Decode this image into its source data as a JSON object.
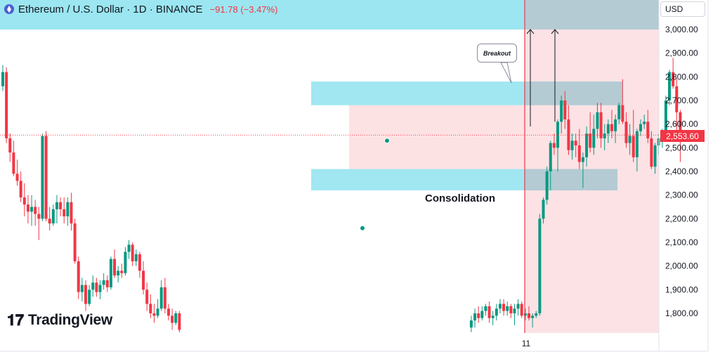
{
  "header": {
    "title": "Ethereum / U.S. Dollar · 1D · BINANCE",
    "change": "−91.78 (−3.47%)",
    "icon": "ethereum-icon"
  },
  "currency_button": "USD",
  "current_price_label": "2,553.60",
  "logo_text": "TradingView",
  "annotations": {
    "callout": "Breakout",
    "range_label": "Consolidation"
  },
  "colors": {
    "up": "#089981",
    "down": "#f23645",
    "zone": "#9be6f0",
    "range_fill": "#fde2e4",
    "target_fill": "#fcdde0",
    "top_band": "#9be6f0",
    "price_line": "#f23645"
  },
  "chart_data": {
    "type": "candlestick",
    "symbol": "ETHUSD",
    "timeframe": "1D",
    "exchange": "BINANCE",
    "y_axis": {
      "ticks": [
        1800,
        1900,
        2000,
        2100,
        2200,
        2300,
        2400,
        2500,
        2600,
        2700,
        2800,
        2900,
        3000
      ],
      "tick_labels": [
        "1,800.00",
        "1,900.00",
        "2,000.00",
        "2,100.00",
        "2,200.00",
        "2,300.00",
        "2,400.00",
        "2,500.00",
        "2,600.00",
        "2,700.00",
        "2,800.00",
        "2,900.00",
        "3,000.00"
      ],
      "range": [
        1720,
        3100
      ]
    },
    "x_axis": {
      "tick_labels": [
        "11"
      ],
      "tick_index": [
        120
      ]
    },
    "candles": [
      [
        2760,
        2850,
        2740,
        2820
      ],
      [
        2820,
        2840,
        2520,
        2540
      ],
      [
        2540,
        2560,
        2440,
        2480
      ],
      [
        2480,
        2530,
        2380,
        2390
      ],
      [
        2390,
        2450,
        2340,
        2360
      ],
      [
        2360,
        2400,
        2270,
        2290
      ],
      [
        2290,
        2350,
        2210,
        2260
      ],
      [
        2260,
        2300,
        2180,
        2230
      ],
      [
        2230,
        2300,
        2170,
        2250
      ],
      [
        2250,
        2280,
        2170,
        2220
      ],
      [
        2220,
        2250,
        2110,
        2200
      ],
      [
        2200,
        2560,
        2190,
        2550
      ],
      [
        2550,
        2570,
        2190,
        2200
      ],
      [
        2200,
        2250,
        2150,
        2180
      ],
      [
        2180,
        2260,
        2170,
        2240
      ],
      [
        2240,
        2300,
        2180,
        2270
      ],
      [
        2270,
        2290,
        2210,
        2240
      ],
      [
        2240,
        2290,
        2180,
        2210
      ],
      [
        2210,
        2290,
        2170,
        2270
      ],
      [
        2270,
        2310,
        2150,
        2180
      ],
      [
        2180,
        2200,
        2010,
        2020
      ],
      [
        2020,
        2040,
        1860,
        1890
      ],
      [
        1890,
        1950,
        1850,
        1920
      ],
      [
        1920,
        1940,
        1810,
        1840
      ],
      [
        1840,
        1920,
        1830,
        1900
      ],
      [
        1900,
        1960,
        1870,
        1930
      ],
      [
        1930,
        1950,
        1870,
        1890
      ],
      [
        1890,
        1940,
        1860,
        1920
      ],
      [
        1920,
        1970,
        1900,
        1940
      ],
      [
        1940,
        1960,
        1890,
        1910
      ],
      [
        1910,
        2040,
        1900,
        2030
      ],
      [
        2030,
        2070,
        1950,
        1960
      ],
      [
        1960,
        2000,
        1930,
        1980
      ],
      [
        1980,
        2010,
        1950,
        1970
      ],
      [
        1970,
        2080,
        1960,
        2060
      ],
      [
        2060,
        2110,
        2030,
        2090
      ],
      [
        2090,
        2100,
        2000,
        2020
      ],
      [
        2020,
        2070,
        2000,
        2050
      ],
      [
        2050,
        2060,
        1950,
        1980
      ],
      [
        1980,
        2020,
        1880,
        1900
      ],
      [
        1900,
        1930,
        1810,
        1840
      ],
      [
        1840,
        1880,
        1780,
        1800
      ],
      [
        1800,
        1840,
        1760,
        1790
      ],
      [
        1790,
        1860,
        1780,
        1820
      ],
      [
        1820,
        1940,
        1810,
        1910
      ],
      [
        1910,
        1950,
        1800,
        1820
      ],
      [
        1820,
        1840,
        1770,
        1790
      ],
      [
        1790,
        1820,
        1730,
        1760
      ],
      [
        1760,
        1810,
        1750,
        1800
      ],
      [
        1800,
        1810,
        1720,
        1730
      ],
      null,
      null,
      null,
      null,
      null,
      null,
      null,
      null,
      null,
      null,
      null,
      null,
      null,
      null,
      null,
      null,
      null,
      null,
      null,
      null,
      null,
      null,
      null,
      null,
      null,
      null,
      null,
      null,
      null,
      null,
      null,
      null,
      null,
      null,
      null,
      null,
      null,
      null,
      null,
      null,
      null,
      null,
      null,
      null,
      null,
      null,
      null,
      null,
      null,
      null,
      null,
      null,
      null,
      null,
      null,
      null,
      null,
      null,
      null,
      null,
      null,
      null,
      null,
      null,
      null,
      null,
      null,
      null,
      null,
      null,
      null,
      null,
      null,
      null,
      null,
      null,
      null,
      null,
      null,
      null,
      [
        1740,
        1790,
        1720,
        1770
      ],
      [
        1770,
        1820,
        1740,
        1800
      ],
      [
        1800,
        1830,
        1760,
        1780
      ],
      [
        1780,
        1830,
        1770,
        1810
      ],
      [
        1810,
        1840,
        1790,
        1830
      ],
      [
        1830,
        1850,
        1760,
        1780
      ],
      [
        1780,
        1810,
        1750,
        1790
      ],
      [
        1790,
        1840,
        1770,
        1820
      ],
      [
        1820,
        1860,
        1800,
        1840
      ],
      [
        1840,
        1860,
        1790,
        1810
      ],
      [
        1810,
        1850,
        1790,
        1830
      ],
      [
        1830,
        1840,
        1780,
        1800
      ],
      [
        1800,
        1840,
        1750,
        1820
      ],
      [
        1820,
        1860,
        1790,
        1840
      ],
      [
        1840,
        1850,
        1780,
        1790
      ],
      [
        1790,
        1820,
        1770,
        1800
      ],
      [
        1800,
        1830,
        1770,
        1780
      ],
      [
        1780,
        1800,
        1740,
        1790
      ],
      [
        1790,
        1810,
        1780,
        1800
      ],
      [
        1800,
        2220,
        1790,
        2200
      ],
      [
        2200,
        2290,
        2180,
        2280
      ],
      [
        2280,
        2420,
        2260,
        2400
      ],
      [
        2400,
        2530,
        2320,
        2520
      ],
      [
        2520,
        2560,
        2470,
        2500
      ],
      [
        2500,
        2620,
        2400,
        2610
      ],
      [
        2610,
        2720,
        2560,
        2700
      ],
      [
        2700,
        2740,
        2580,
        2620
      ],
      [
        2620,
        2680,
        2470,
        2490
      ],
      [
        2490,
        2560,
        2450,
        2530
      ],
      [
        2530,
        2560,
        2460,
        2510
      ],
      [
        2510,
        2580,
        2410,
        2440
      ]
    ],
    "candles_note_index": "index 0 at x≈4, spacing ≈5.13px",
    "right_candles": [
      [
        2440,
        2480,
        2330,
        2460
      ],
      [
        2460,
        2590,
        2420,
        2560
      ],
      [
        2560,
        2650,
        2480,
        2500
      ],
      [
        2500,
        2640,
        2470,
        2580
      ],
      [
        2580,
        2690,
        2540,
        2650
      ],
      [
        2650,
        2690,
        2500,
        2540
      ],
      [
        2540,
        2600,
        2490,
        2560
      ],
      [
        2560,
        2620,
        2520,
        2600
      ],
      [
        2600,
        2660,
        2540,
        2570
      ],
      [
        2570,
        2640,
        2520,
        2620
      ],
      [
        2620,
        2690,
        2600,
        2680
      ],
      [
        2680,
        2790,
        2600,
        2610
      ],
      [
        2610,
        2650,
        2500,
        2520
      ],
      [
        2520,
        2600,
        2470,
        2550
      ],
      [
        2550,
        2660,
        2440,
        2460
      ],
      [
        2460,
        2580,
        2400,
        2570
      ],
      [
        2570,
        2620,
        2550,
        2600
      ],
      [
        2600,
        2640,
        2580,
        2610
      ],
      [
        2610,
        2660,
        2520,
        2540
      ],
      [
        2540,
        2570,
        2410,
        2420
      ],
      [
        2420,
        2520,
        2390,
        2510
      ],
      [
        2510,
        2560,
        2470,
        2540
      ],
      [
        2540,
        2580,
        2500,
        2560
      ],
      [
        2560,
        2720,
        2540,
        2700
      ],
      [
        2700,
        2830,
        2680,
        2820
      ],
      [
        2820,
        2880,
        2750,
        2760
      ],
      [
        2760,
        2790,
        2540,
        2650
      ],
      [
        2650,
        2660,
        2440,
        2553.6
      ]
    ],
    "series": [
      {
        "name": "ETHUSD",
        "last": 2553.6
      }
    ],
    "zones": [
      {
        "name": "resistance",
        "low": 2680,
        "high": 2780
      },
      {
        "name": "support",
        "low": 2320,
        "high": 2410
      },
      {
        "name": "consolidation-range",
        "low": 2410,
        "high": 2680
      },
      {
        "name": "target",
        "low": 3000,
        "high": 3100
      }
    ],
    "markers": [
      {
        "kind": "dot",
        "price": 2530
      },
      {
        "kind": "dot",
        "price": 2160
      }
    ],
    "targets": [
      3000,
      3000
    ],
    "grid": false,
    "legend": "none"
  }
}
